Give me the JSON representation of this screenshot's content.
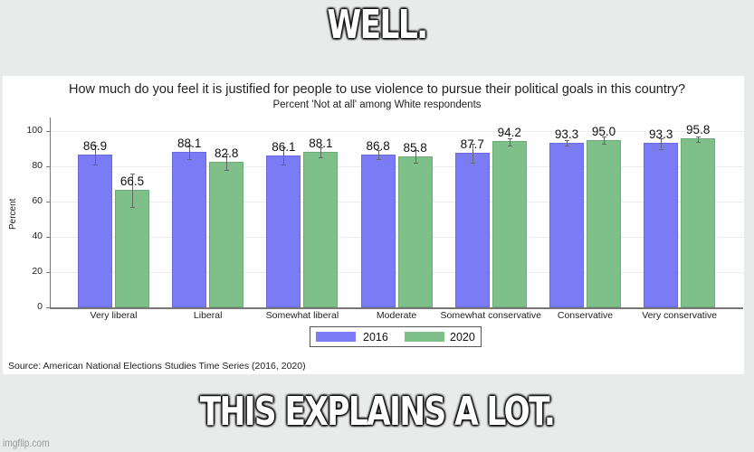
{
  "meme": {
    "top_text": "WELL.",
    "bottom_text": "THIS EXPLAINS A LOT.",
    "watermark": "imgflip.com"
  },
  "chart_data": {
    "type": "bar",
    "title": "How much do you feel it is justified for people to use violence to pursue their political goals in this country?",
    "subtitle": "Percent 'Not at all' among White respondents",
    "xlabel": "",
    "ylabel": "Percent",
    "ylim": [
      0,
      100
    ],
    "yticks": [
      0,
      20,
      40,
      60,
      80,
      100
    ],
    "grid": true,
    "legend_position": "bottom",
    "categories": [
      "Very liberal",
      "Liberal",
      "Somewhat liberal",
      "Moderate",
      "Somewhat conservative",
      "Conservative",
      "Very conservative"
    ],
    "series": [
      {
        "name": "2016",
        "color": "#7b7bf5",
        "values": [
          86.9,
          88.1,
          86.1,
          86.8,
          87.7,
          93.3,
          93.3
        ],
        "labels": [
          "86.9",
          "88.1",
          "86.1",
          "86.8",
          "87.7",
          "93.3",
          "93.3"
        ],
        "error_low": [
          81,
          84,
          81,
          84,
          82,
          92,
          90
        ],
        "error_high": [
          92,
          92,
          91,
          89,
          93,
          95,
          96
        ]
      },
      {
        "name": "2020",
        "color": "#7fbf8a",
        "values": [
          66.5,
          82.8,
          88.1,
          85.8,
          94.2,
          95.0,
          95.8
        ],
        "labels": [
          "66.5",
          "82.8",
          "88.1",
          "85.8",
          "94.2",
          "95.0",
          "95.8"
        ],
        "error_low": [
          57,
          78,
          85,
          82,
          92,
          93,
          94
        ],
        "error_high": [
          76,
          87,
          91,
          89,
          96,
          97,
          97
        ]
      }
    ],
    "source": "Source: American National Elections Studies Time Series (2016, 2020)"
  }
}
